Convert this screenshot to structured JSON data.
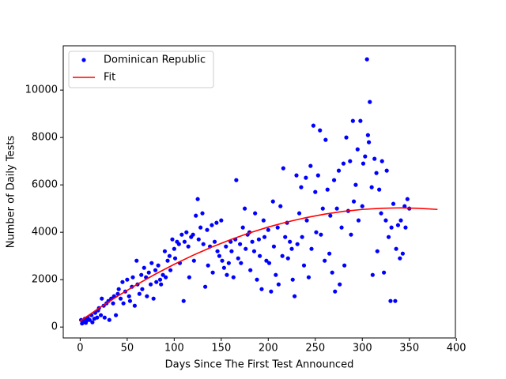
{
  "chart_data": {
    "type": "scatter",
    "xlabel": "Days Since The First Test Announced",
    "ylabel": "Number of Daily Tests",
    "xlim": [
      -18,
      399
    ],
    "ylim": [
      -460,
      11870
    ],
    "xticks": [
      0,
      50,
      100,
      150,
      200,
      250,
      300,
      350,
      400
    ],
    "yticks": [
      0,
      2000,
      4000,
      6000,
      8000,
      10000
    ],
    "legend": "upper left",
    "series": [
      {
        "name": "Dominican Republic",
        "color": "#0000ff",
        "mode": "markers",
        "x": [
          1,
          2,
          3,
          4,
          5,
          6,
          7,
          8,
          10,
          12,
          13,
          15,
          16,
          18,
          19,
          20,
          22,
          23,
          25,
          26,
          28,
          30,
          31,
          33,
          35,
          36,
          38,
          40,
          41,
          43,
          45,
          46,
          48,
          50,
          52,
          53,
          55,
          56,
          58,
          60,
          61,
          63,
          65,
          66,
          68,
          70,
          71,
          73,
          75,
          76,
          78,
          80,
          81,
          83,
          85,
          86,
          88,
          90,
          91,
          93,
          95,
          96,
          98,
          100,
          101,
          103,
          105,
          106,
          108,
          110,
          111,
          113,
          115,
          116,
          118,
          120,
          121,
          123,
          125,
          126,
          128,
          130,
          131,
          133,
          135,
          136,
          138,
          140,
          141,
          143,
          145,
          146,
          148,
          150,
          151,
          153,
          155,
          156,
          158,
          160,
          161,
          163,
          165,
          166,
          168,
          170,
          171,
          173,
          175,
          176,
          178,
          180,
          181,
          183,
          185,
          186,
          188,
          190,
          191,
          193,
          195,
          196,
          198,
          200,
          201,
          203,
          205,
          206,
          208,
          210,
          211,
          213,
          215,
          216,
          218,
          220,
          221,
          223,
          225,
          226,
          228,
          230,
          231,
          233,
          235,
          236,
          238,
          240,
          241,
          243,
          245,
          246,
          248,
          250,
          251,
          253,
          255,
          256,
          258,
          260,
          261,
          263,
          265,
          266,
          268,
          270,
          271,
          273,
          275,
          276,
          278,
          280,
          281,
          283,
          285,
          287,
          288,
          290,
          291,
          293,
          295,
          296,
          298,
          300,
          301,
          303,
          305,
          306,
          307,
          308,
          310,
          311,
          313,
          315,
          316,
          318,
          320,
          321,
          323,
          325,
          326,
          328,
          330,
          331,
          333,
          335,
          336,
          338,
          340,
          341,
          343,
          345,
          346,
          348,
          350
        ],
        "values": [
          300,
          150,
          200,
          250,
          350,
          180,
          280,
          400,
          300,
          500,
          200,
          350,
          600,
          400,
          700,
          800,
          500,
          1200,
          900,
          400,
          1000,
          1100,
          300,
          1200,
          1000,
          1300,
          500,
          1400,
          1600,
          1200,
          1900,
          1000,
          1500,
          2000,
          1300,
          1100,
          1700,
          2100,
          900,
          2800,
          1800,
          1400,
          2200,
          1600,
          2500,
          2100,
          1300,
          2300,
          1800,
          2700,
          1200,
          2400,
          1900,
          2600,
          2000,
          1800,
          2200,
          3200,
          2100,
          2800,
          3000,
          2400,
          3700,
          3300,
          2900,
          3600,
          3500,
          2700,
          3900,
          1100,
          3600,
          4000,
          3400,
          2100,
          3800,
          3900,
          2800,
          4700,
          5400,
          3700,
          4200,
          4800,
          3500,
          1700,
          4100,
          2600,
          3400,
          4300,
          2300,
          3600,
          4400,
          3200,
          3000,
          4500,
          2800,
          2500,
          3400,
          2200,
          2700,
          3600,
          3200,
          2100,
          3700,
          6200,
          2900,
          3500,
          2700,
          4200,
          5000,
          3300,
          3900,
          4000,
          2400,
          3600,
          3200,
          4800,
          2000,
          3700,
          3000,
          1600,
          4500,
          3800,
          2800,
          4100,
          2700,
          1500,
          5300,
          3400,
          2200,
          4200,
          1800,
          5100,
          3000,
          6700,
          3800,
          4400,
          2900,
          3600,
          3300,
          2000,
          1300,
          6400,
          3500,
          4800,
          5900,
          3800,
          2600,
          6300,
          4500,
          2100,
          6800,
          3300,
          8500,
          5700,
          4000,
          6400,
          8300,
          3900,
          5000,
          2800,
          7900,
          5800,
          3100,
          4700,
          2300,
          6200,
          1500,
          5000,
          6600,
          1800,
          4200,
          6900,
          2600,
          8000,
          4900,
          7000,
          3900,
          8700,
          5300,
          6000,
          7500,
          4500,
          8700,
          5100,
          6900,
          7200,
          11300,
          8100,
          7800,
          9500,
          5900,
          2200,
          7100,
          6500,
          3200,
          5800,
          4800,
          7000,
          2300,
          4500,
          6600,
          3800,
          1100,
          4200,
          5200,
          1100,
          3300,
          4300,
          2900,
          4500,
          3100,
          5100,
          4200,
          5400,
          5000
        ]
      },
      {
        "name": "Fit",
        "color": "#ff0000",
        "mode": "line",
        "x": [
          0,
          20,
          40,
          60,
          80,
          100,
          120,
          140,
          160,
          180,
          200,
          220,
          240,
          260,
          280,
          300,
          320,
          340,
          360,
          380
        ],
        "values": [
          250,
          796,
          1308,
          1788,
          2235,
          2648,
          3029,
          3376,
          3690,
          3971,
          4220,
          4435,
          4616,
          4765,
          4881,
          4964,
          5013,
          5030,
          5013,
          4964
        ]
      }
    ]
  }
}
